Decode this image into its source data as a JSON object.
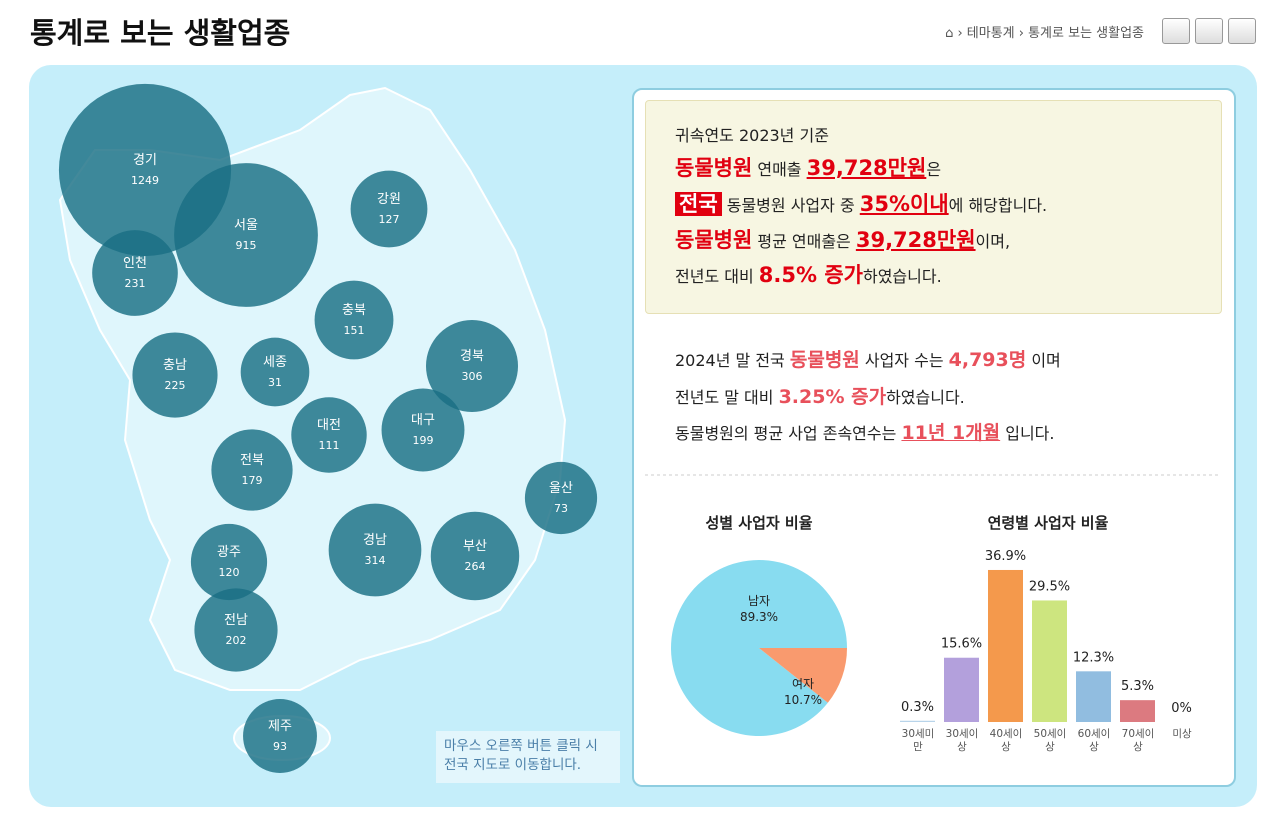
{
  "header": {
    "title": "통계로 보는 생활업종",
    "breadcrumb": [
      "테마통계",
      "통계로 보는 생활업종"
    ]
  },
  "map": {
    "bubble_color": "#1a6f84",
    "regions": [
      {
        "name": "경기",
        "value": 1249
      },
      {
        "name": "서울",
        "value": 915
      },
      {
        "name": "인천",
        "value": 231
      },
      {
        "name": "강원",
        "value": 127
      },
      {
        "name": "충북",
        "value": 151
      },
      {
        "name": "충남",
        "value": 225
      },
      {
        "name": "세종",
        "value": 31
      },
      {
        "name": "경북",
        "value": 306
      },
      {
        "name": "대전",
        "value": 111
      },
      {
        "name": "대구",
        "value": 199
      },
      {
        "name": "전북",
        "value": 179
      },
      {
        "name": "울산",
        "value": 73
      },
      {
        "name": "경남",
        "value": 314
      },
      {
        "name": "부산",
        "value": 264
      },
      {
        "name": "광주",
        "value": 120
      },
      {
        "name": "전남",
        "value": 202
      },
      {
        "name": "제주",
        "value": 93
      }
    ],
    "hint": "마우스 오른쪽 버튼 클릭 시 전국 지도로 이동합니다."
  },
  "summary": {
    "basis": "귀속연도 2023년 기준",
    "lines": [
      [
        "동물병원",
        " 연매출 ",
        "39,728만원",
        "은"
      ],
      [
        "전국",
        " 동물병원 사업자 중 ",
        "35%이내",
        "에 해당합니다."
      ],
      [
        "동물병원",
        " 평균 연매출은 ",
        "39,728만원",
        "이며,"
      ],
      [
        "전년도 대비 ",
        "8.5% 증가",
        "하였습니다."
      ]
    ]
  },
  "status": {
    "lines": [
      [
        "2024년 말 전국 ",
        "동물병원",
        " 사업자 수는 ",
        "4,793명",
        " 이며"
      ],
      [
        "전년도 말 대비 ",
        "3.25% 증가",
        "하였습니다."
      ],
      [
        "동물병원의 평균 사업 존속연수는 ",
        "11년 1개월",
        " 입니다."
      ]
    ]
  },
  "charts": [
    {
      "type": "pie",
      "title": "성별 사업자 비율",
      "categories": [
        "남자",
        "여자"
      ],
      "values": [
        89.3,
        10.7
      ],
      "value_labels": [
        "89.3%",
        "10.7%"
      ],
      "colors": [
        "#88dcf0",
        "#f99a6e"
      ]
    },
    {
      "type": "bar",
      "title": "연령별 사업자 비율",
      "categories": [
        "30세미만",
        "30세이상",
        "40세이상",
        "50세이상",
        "60세이상",
        "70세이상",
        "미상"
      ],
      "values": [
        0.3,
        15.6,
        36.9,
        29.5,
        12.3,
        5.3,
        0
      ],
      "value_labels": [
        "0.3%",
        "15.6%",
        "36.9%",
        "29.5%",
        "12.3%",
        "5.3%",
        "0%"
      ],
      "colors": [
        "#b8d4ea",
        "#b3a0dc",
        "#f4994c",
        "#cde57f",
        "#91bde0",
        "#dc7a80",
        "#cccccc"
      ]
    }
  ]
}
